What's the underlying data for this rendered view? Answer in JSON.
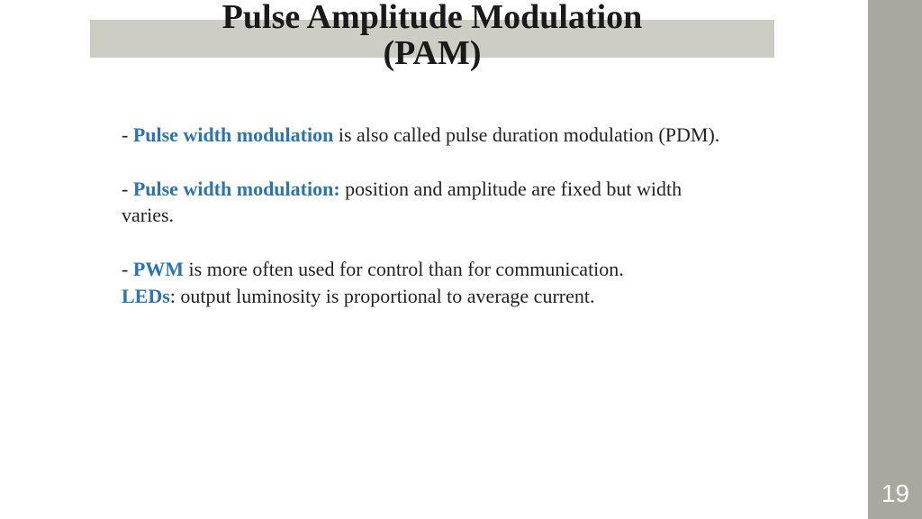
{
  "title_line1": "Pulse Amplitude Modulation",
  "title_line2": "(PAM)",
  "page_number": "19",
  "colors": {
    "highlight": "#2a74b5",
    "sidebar": "#a8a8a0",
    "band": "#cdcdc3",
    "text": "#222222"
  },
  "bullets": [
    {
      "prefix": "- ",
      "highlight": "Pulse width modulation",
      "rest": " is also called pulse duration modulation (PDM)."
    },
    {
      "prefix": "- ",
      "highlight": "Pulse width modulation:",
      "rest": " position and amplitude are fixed but width varies."
    },
    {
      "prefix": "- ",
      "highlight": "PWM",
      "rest": " is more often used for control than for communication."
    },
    {
      "prefix": "",
      "highlight": "LEDs",
      "rest": ": output luminosity is proportional to average current."
    }
  ]
}
